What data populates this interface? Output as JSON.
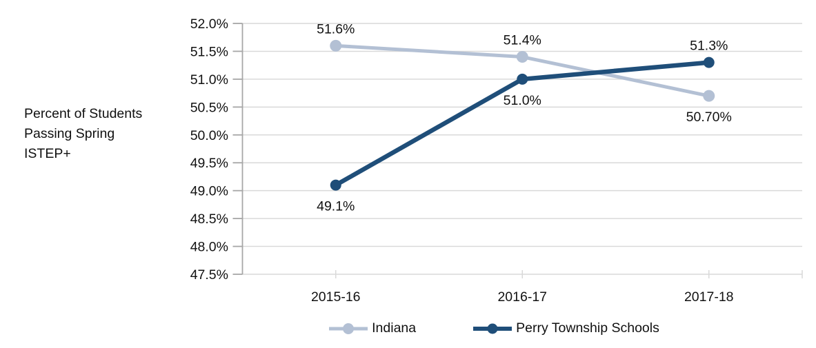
{
  "chart_data": {
    "type": "line",
    "title": "",
    "ylabel_lines": [
      "Percent of Students",
      "Passing Spring",
      "ISTEP+"
    ],
    "xlabel": "",
    "categories": [
      "2015-16",
      "2016-17",
      "2017-18"
    ],
    "series": [
      {
        "name": "Indiana",
        "color": "#b3c0d4",
        "values": [
          51.6,
          51.4,
          50.7
        ],
        "point_labels": [
          "51.6%",
          "51.4%",
          "50.70%"
        ],
        "label_positions": [
          "above",
          "above",
          "below"
        ]
      },
      {
        "name": "Perry Township Schools",
        "color": "#1f4e79",
        "values": [
          49.1,
          51.0,
          51.3
        ],
        "point_labels": [
          "49.1%",
          "51.0%",
          "51.3%"
        ],
        "label_positions": [
          "below",
          "below",
          "above"
        ]
      }
    ],
    "y_axis": {
      "min": 47.5,
      "max": 52.0,
      "step": 0.5,
      "tick_labels": [
        "52.0%",
        "51.5%",
        "51.0%",
        "50.5%",
        "50.0%",
        "49.5%",
        "49.0%",
        "48.5%",
        "48.0%",
        "47.5%"
      ]
    },
    "grid": "horizontal",
    "legend_position": "bottom",
    "colors": {
      "gridline": "#d9d9d9",
      "axis": "#a6a6a6",
      "text": "#111111"
    }
  }
}
